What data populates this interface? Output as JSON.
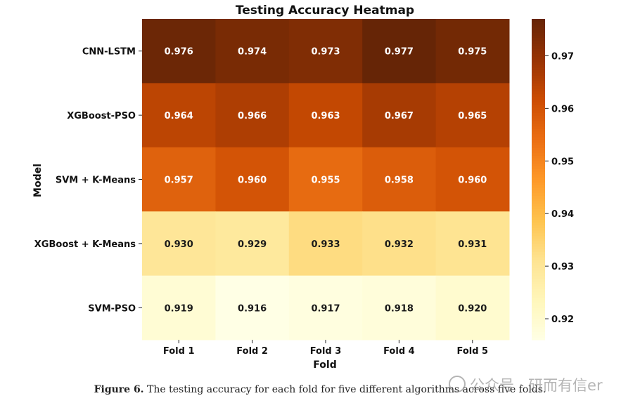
{
  "chart_data": {
    "type": "heatmap",
    "title": "Testing Accuracy Heatmap",
    "xlabel": "Fold",
    "ylabel": "Model",
    "x_categories": [
      "Fold 1",
      "Fold 2",
      "Fold 3",
      "Fold 4",
      "Fold 5"
    ],
    "y_categories": [
      "CNN-LSTM",
      "XGBoost-PSO",
      "SVM + K-Means",
      "XGBoost + K-Means",
      "SVM-PSO"
    ],
    "values": [
      [
        0.976,
        0.974,
        0.973,
        0.977,
        0.975
      ],
      [
        0.964,
        0.966,
        0.963,
        0.967,
        0.965
      ],
      [
        0.957,
        0.96,
        0.955,
        0.958,
        0.96
      ],
      [
        0.93,
        0.929,
        0.933,
        0.932,
        0.931
      ],
      [
        0.919,
        0.916,
        0.917,
        0.918,
        0.92
      ]
    ],
    "colorbar": {
      "range": [
        0.916,
        0.977
      ],
      "ticks": [
        0.92,
        0.93,
        0.94,
        0.95,
        0.96,
        0.97
      ],
      "tick_labels": [
        "0.92",
        "0.93",
        "0.94",
        "0.95",
        "0.96",
        "0.97"
      ],
      "colormap": "YlOrBr"
    },
    "grid": false
  },
  "caption": {
    "lead": "Figure 6.",
    "text": " The testing accuracy for each fold for five different algorithms across five folds."
  },
  "watermark": {
    "text": "公众号 · 研而有信er"
  }
}
